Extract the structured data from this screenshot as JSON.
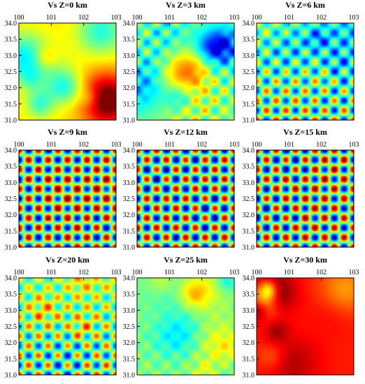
{
  "chart_data": {
    "type": "heatmap",
    "colormap": "jet",
    "x_ticks": [
      "100",
      "101",
      "102",
      "103"
    ],
    "y_ticks": [
      "34.0",
      "33.5",
      "33.0",
      "32.5",
      "32.0",
      "31.5",
      "31.0"
    ],
    "xlim": [
      100,
      103
    ],
    "ylim": [
      31.0,
      34.0
    ],
    "panels": [
      {
        "title": "Vs Z=0 km",
        "pattern": "smooth",
        "warm_bias": 0.15,
        "seed": 11
      },
      {
        "title": "Vs Z=3 km",
        "pattern": "mixed",
        "warm_bias": 0.0,
        "seed": 23
      },
      {
        "title": "Vs Z=6 km",
        "pattern": "checker-partial",
        "warm_bias": 0.0,
        "seed": 37
      },
      {
        "title": "Vs Z=9 km",
        "pattern": "checker",
        "warm_bias": 0.0,
        "seed": 41
      },
      {
        "title": "Vs Z=12 km",
        "pattern": "checker",
        "warm_bias": 0.0,
        "seed": 53
      },
      {
        "title": "Vs Z=15 km",
        "pattern": "checker",
        "warm_bias": 0.0,
        "seed": 67
      },
      {
        "title": "Vs Z=20 km",
        "pattern": "checker-partial",
        "warm_bias": 0.0,
        "seed": 71
      },
      {
        "title": "Vs Z=25 km",
        "pattern": "smooth-weak",
        "warm_bias": 0.0,
        "seed": 83
      },
      {
        "title": "Vs Z=30 km",
        "pattern": "smooth",
        "warm_bias": 0.35,
        "seed": 97
      }
    ]
  }
}
